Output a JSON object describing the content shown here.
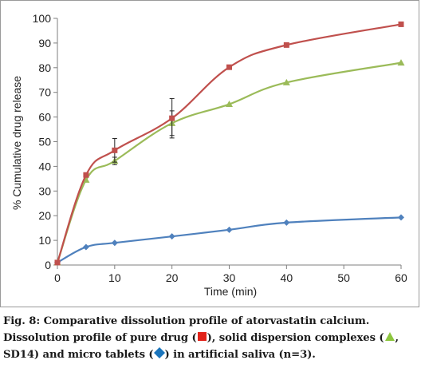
{
  "chart_data": {
    "type": "line",
    "title": "",
    "xlabel": "Time (min)",
    "ylabel": "% Cumulative drug release",
    "xlim": [
      0,
      60
    ],
    "ylim": [
      0,
      100
    ],
    "xticks": [
      0,
      10,
      20,
      30,
      40,
      50,
      60
    ],
    "yticks": [
      0,
      10,
      20,
      30,
      40,
      50,
      60,
      70,
      80,
      90,
      100
    ],
    "grid": false,
    "series": [
      {
        "color": "#c0504d",
        "marker": "square",
        "x": [
          0,
          5,
          10,
          20,
          30,
          40,
          60
        ],
        "y": [
          1,
          36.5,
          46.5,
          59.5,
          80.2,
          89.2,
          97.6
        ],
        "error": [
          0,
          0,
          4.8,
          8.0,
          0,
          0,
          0
        ]
      },
      {
        "color": "#9bbb59",
        "marker": "triangle",
        "x": [
          0,
          5,
          10,
          20,
          30,
          40,
          60
        ],
        "y": [
          1,
          34.5,
          42.2,
          57.5,
          65.2,
          74.0,
          82.0
        ],
        "error": [
          0,
          0,
          1.5,
          5.0,
          0,
          0,
          0
        ]
      },
      {
        "color": "#4f81bd",
        "marker": "diamond",
        "x": [
          0,
          5,
          10,
          20,
          30,
          40,
          60
        ],
        "y": [
          1,
          7.3,
          9.0,
          11.6,
          14.3,
          17.2,
          19.3
        ],
        "error": [
          0,
          0,
          0,
          0,
          0,
          0,
          0
        ]
      }
    ]
  },
  "caption": {
    "line1": "Fig. 8: Comparative dissolution profile of atorvastatin calcium.",
    "part1": "Dissolution profile of pure drug (",
    "part2": "), solid dispersion complexes (",
    "part3": ",",
    "part4": "SD14) and micro tablets (",
    "part5": ") in artificial saliva (n=3).",
    "marker_colors": {
      "pure_drug": "#e2231a",
      "solid_dispersion": "#8dc63f",
      "micro_tablets": "#1b75bc"
    }
  }
}
